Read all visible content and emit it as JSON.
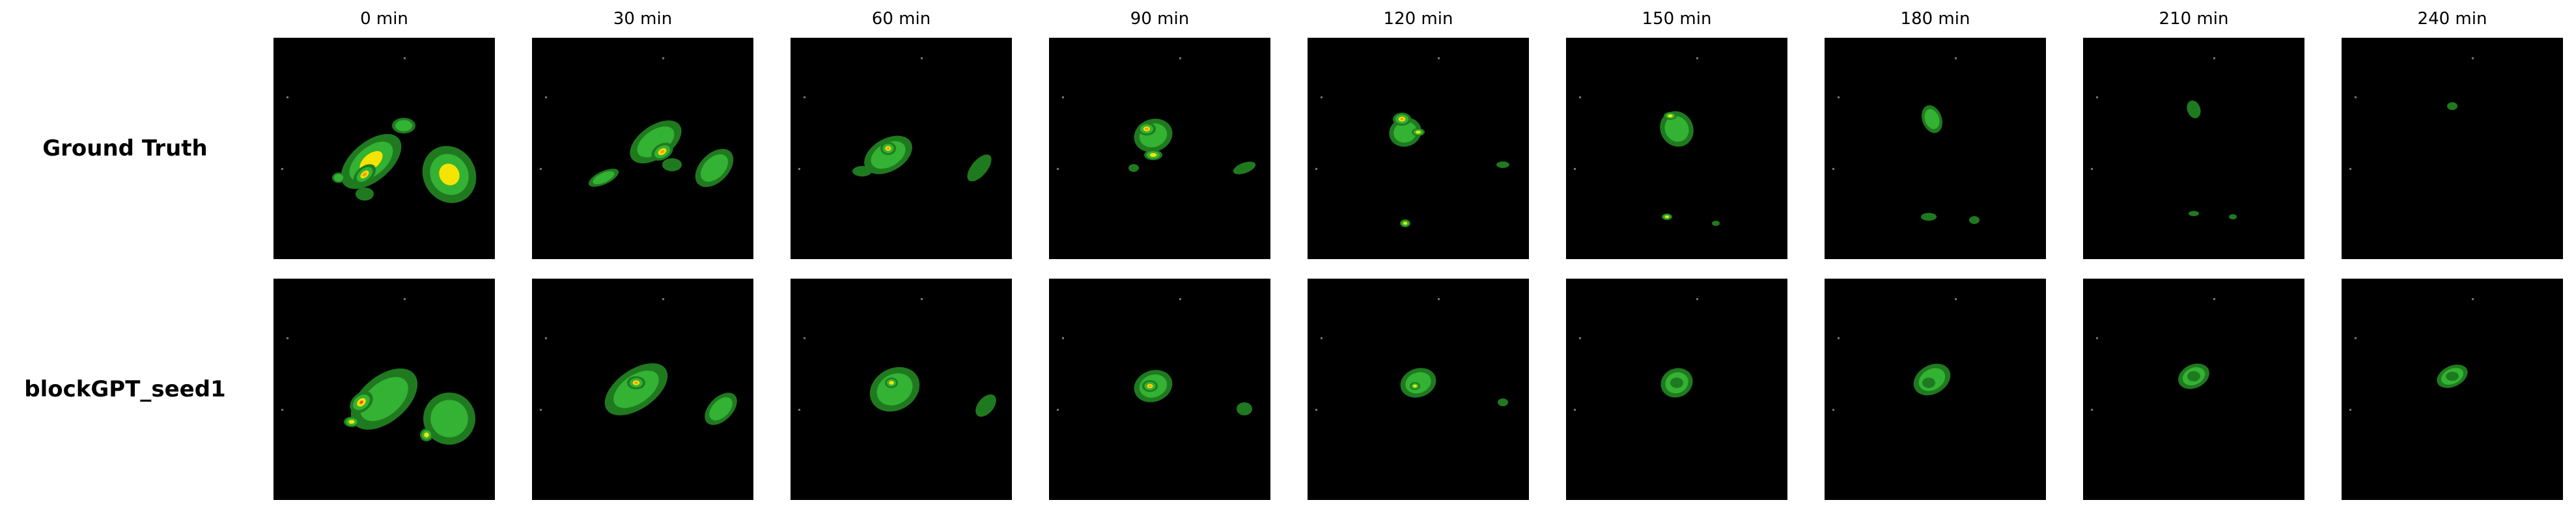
{
  "figure": {
    "columns": [
      "0 min",
      "30 min",
      "60 min",
      "90 min",
      "120 min",
      "150 min",
      "180 min",
      "210 min",
      "240 min"
    ],
    "rows": [
      "Ground Truth",
      "blockGPT_seed1"
    ],
    "colors": {
      "background": "#000000",
      "low": "#1f7a1f",
      "medium": "#33b233",
      "high": "#f5e400",
      "extreme": "#ff9900",
      "peak": "#e0321e",
      "speck": "#777777"
    }
  }
}
